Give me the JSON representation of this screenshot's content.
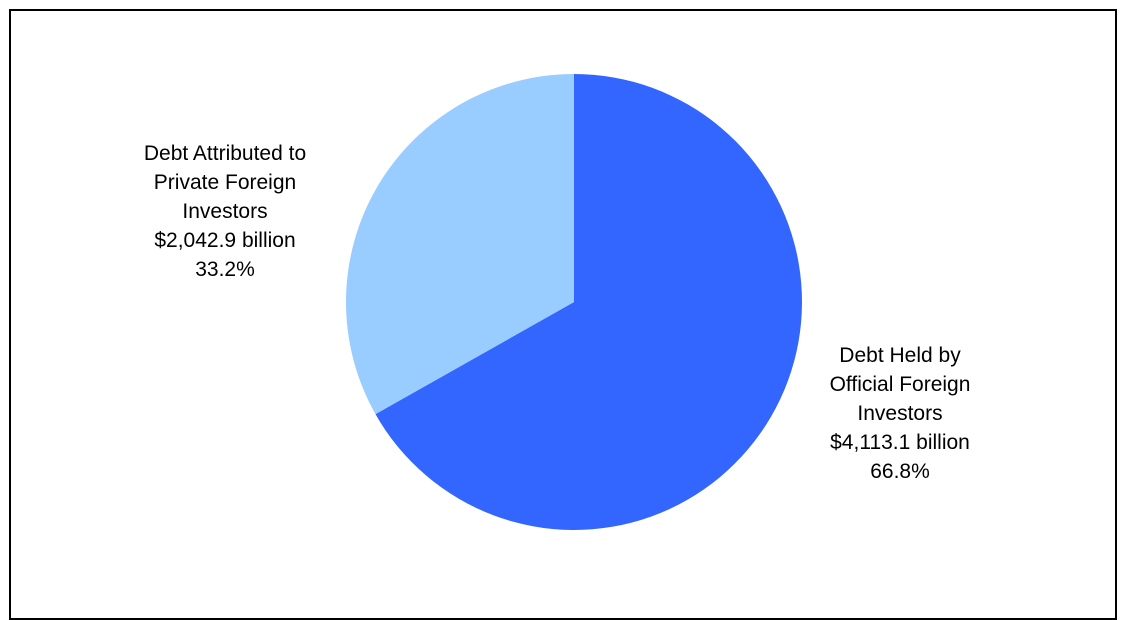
{
  "chart_data": {
    "type": "pie",
    "slices": [
      {
        "label_lines": [
          "Debt Held by",
          "Official Foreign",
          "Investors"
        ],
        "value_text": "$4,113.1 billion",
        "percent_text": "66.8%",
        "value": 4113.1,
        "percent": 66.8,
        "color": "#3366ff"
      },
      {
        "label_lines": [
          "Debt Attributed to",
          "Private Foreign",
          "Investors"
        ],
        "value_text": "$2,042.9 billion",
        "percent_text": "33.2%",
        "value": 2042.9,
        "percent": 33.2,
        "color": "#99ccff"
      }
    ],
    "start_angle_deg": 0,
    "direction": "clockwise"
  }
}
